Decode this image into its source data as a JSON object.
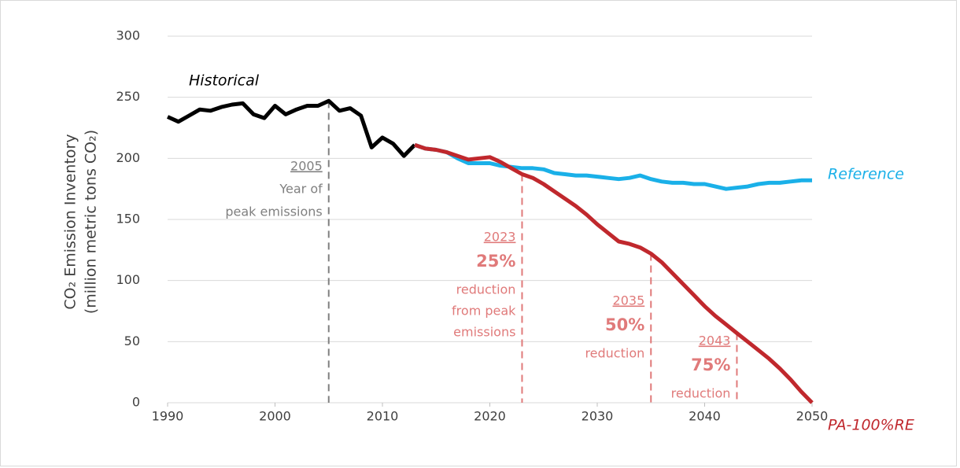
{
  "chart_data": {
    "type": "line",
    "y_label": [
      "CO₂ Emission Inventory",
      "(million metric tons CO₂)"
    ],
    "xlim": [
      1990,
      2050
    ],
    "xticks": [
      1990,
      2000,
      2010,
      2020,
      2030,
      2040,
      2050
    ],
    "ylim": [
      0,
      300
    ],
    "yticks": [
      0,
      50,
      100,
      150,
      200,
      250,
      300
    ],
    "grid": true,
    "series": [
      {
        "name": "Historical",
        "color": "#000000",
        "x": [
          1990,
          1991,
          1992,
          1993,
          1994,
          1995,
          1996,
          1997,
          1998,
          1999,
          2000,
          2001,
          2002,
          2003,
          2004,
          2005,
          2006,
          2007,
          2008,
          2009,
          2010,
          2011,
          2012,
          2013
        ],
        "values": [
          234,
          230,
          235,
          240,
          239,
          242,
          244,
          245,
          236,
          233,
          243,
          236,
          240,
          243,
          243,
          247,
          239,
          241,
          235,
          209,
          217,
          212,
          202,
          211
        ]
      },
      {
        "name": "Reference",
        "color": "#1ab0e8",
        "x": [
          2013,
          2014,
          2015,
          2016,
          2017,
          2018,
          2019,
          2020,
          2021,
          2022,
          2023,
          2024,
          2025,
          2026,
          2027,
          2028,
          2029,
          2030,
          2031,
          2032,
          2033,
          2034,
          2035,
          2036,
          2037,
          2038,
          2039,
          2040,
          2041,
          2042,
          2043,
          2044,
          2045,
          2046,
          2047,
          2048,
          2049,
          2050
        ],
        "values": [
          211,
          208,
          207,
          205,
          200,
          196,
          196,
          196,
          194,
          193,
          192,
          192,
          191,
          188,
          187,
          186,
          186,
          185,
          184,
          183,
          184,
          186,
          183,
          181,
          180,
          180,
          179,
          179,
          177,
          175,
          176,
          177,
          179,
          180,
          180,
          181,
          182,
          182
        ]
      },
      {
        "name": "PA-100%RE",
        "color": "#c0282d",
        "x": [
          2013,
          2014,
          2015,
          2016,
          2017,
          2018,
          2019,
          2020,
          2021,
          2022,
          2023,
          2024,
          2025,
          2026,
          2027,
          2028,
          2029,
          2030,
          2031,
          2032,
          2033,
          2034,
          2035,
          2036,
          2037,
          2038,
          2039,
          2040,
          2041,
          2042,
          2043,
          2044,
          2045,
          2046,
          2047,
          2048,
          2049,
          2050
        ],
        "values": [
          211,
          208,
          207,
          205,
          202,
          199,
          200,
          201,
          197,
          192,
          187,
          184,
          179,
          173,
          167,
          161,
          154,
          146,
          139,
          132,
          130,
          127,
          122,
          115,
          106,
          97,
          88,
          79,
          71,
          64,
          57,
          50,
          43,
          36,
          28,
          19,
          9,
          0
        ]
      }
    ],
    "annotations": [
      {
        "x": 2005,
        "y": 247,
        "color": "#808080",
        "year": "2005",
        "text": [
          "Year of",
          "peak emissions"
        ]
      },
      {
        "x": 2023,
        "y": 187,
        "color": "#e07a7a",
        "year": "2023",
        "percent": "25%",
        "text": [
          "reduction",
          "from peak",
          "emissions"
        ]
      },
      {
        "x": 2035,
        "y": 122,
        "color": "#e07a7a",
        "year": "2035",
        "percent": "50%",
        "text": [
          "reduction"
        ]
      },
      {
        "x": 2043,
        "y": 57,
        "color": "#e07a7a",
        "year": "2043",
        "percent": "75%",
        "text": [
          "reduction"
        ]
      }
    ]
  }
}
